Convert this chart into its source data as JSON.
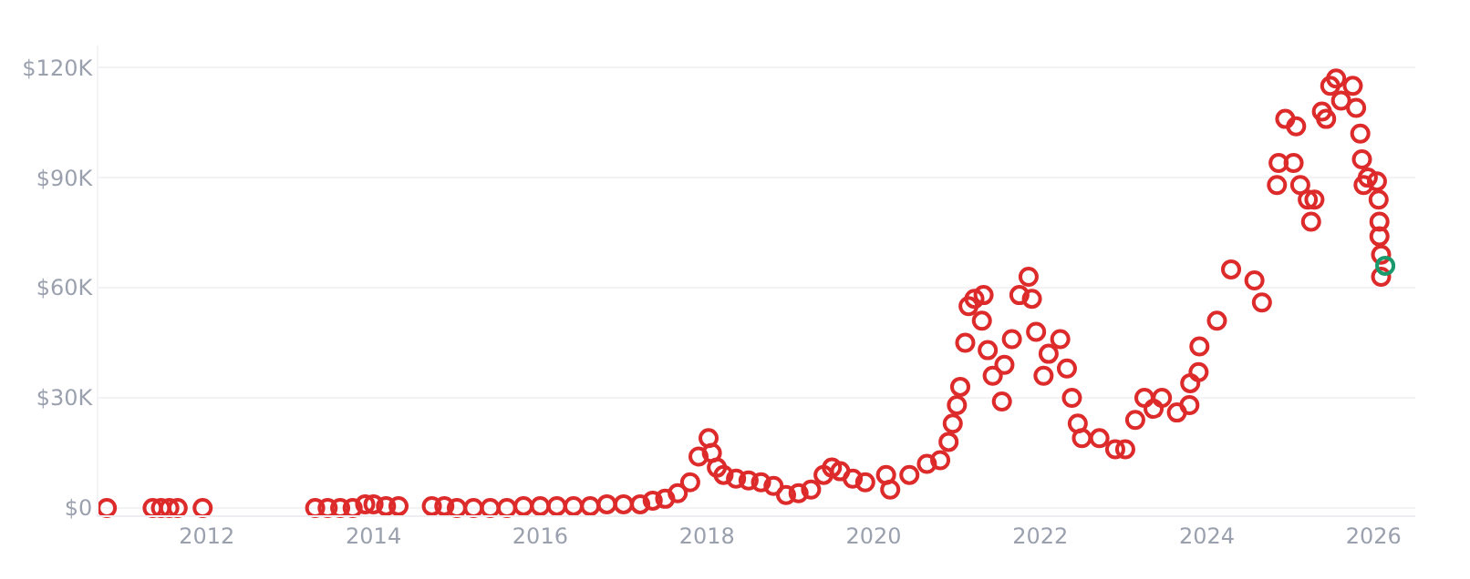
{
  "chart_data": {
    "type": "scatter",
    "marker": "circle",
    "grid": "y",
    "xlim": [
      2010.7,
      2026.5
    ],
    "xticks": [
      2012,
      2014,
      2016,
      2018,
      2020,
      2022,
      2024,
      2026
    ],
    "ylim": [
      -2000,
      126000
    ],
    "yticks": [
      {
        "value": 0,
        "label": "$0"
      },
      {
        "value": 30000,
        "label": "$30K"
      },
      {
        "value": 60000,
        "label": "$60K"
      },
      {
        "value": 90000,
        "label": "$90K"
      },
      {
        "value": 120000,
        "label": "$120K"
      }
    ],
    "series": [
      {
        "color": "#dd2a2a",
        "x": [
          2010.8,
          2011.35,
          2011.45,
          2011.55,
          2011.65,
          2011.95,
          2013.3,
          2013.45,
          2013.6,
          2013.75,
          2013.9,
          2014.0,
          2014.15,
          2014.3,
          2014.7,
          2014.85,
          2015.0,
          2015.2,
          2015.4,
          2015.6,
          2015.8,
          2016.0,
          2016.2,
          2016.4,
          2016.6,
          2016.8,
          2017.0,
          2017.2,
          2017.35,
          2017.5,
          2017.65,
          2017.8,
          2017.9,
          2018.02,
          2018.06,
          2018.12,
          2018.2,
          2018.35,
          2018.5,
          2018.65,
          2018.8,
          2018.95,
          2019.1,
          2019.25,
          2019.4,
          2019.5,
          2019.6,
          2019.75,
          2019.9,
          2020.15,
          2020.2,
          2020.43,
          2020.64,
          2020.8,
          2020.9,
          2020.95,
          2021.0,
          2021.04,
          2021.1,
          2021.14,
          2021.21,
          2021.32,
          2021.3,
          2021.37,
          2021.43,
          2021.54,
          2021.57,
          2021.66,
          2021.75,
          2021.86,
          2021.9,
          2021.95,
          2022.04,
          2022.1,
          2022.24,
          2022.32,
          2022.38,
          2022.45,
          2022.5,
          2022.71,
          2022.9,
          2023.02,
          2023.14,
          2023.25,
          2023.36,
          2023.46,
          2023.64,
          2023.79,
          2023.8,
          2023.9,
          2023.91,
          2024.12,
          2024.29,
          2024.57,
          2024.66,
          2024.84,
          2024.86,
          2024.94,
          2025.04,
          2025.07,
          2025.12,
          2025.21,
          2025.25,
          2025.29,
          2025.38,
          2025.43,
          2025.48,
          2025.55,
          2025.61,
          2025.75,
          2025.79,
          2025.84,
          2025.86,
          2025.88,
          2025.93,
          2026.04,
          2026.06,
          2026.07,
          2026.07,
          2026.09,
          2026.09
        ],
        "values": [
          0,
          0,
          0,
          0,
          0,
          0,
          0,
          0,
          0,
          0,
          1000,
          1000,
          500,
          500,
          500,
          500,
          0,
          0,
          0,
          0,
          500,
          500,
          500,
          500,
          500,
          1000,
          1000,
          1000,
          2000,
          2500,
          4000,
          7000,
          14000,
          19000,
          15000,
          11000,
          9000,
          8000,
          7500,
          7000,
          6000,
          3500,
          4000,
          5000,
          9000,
          11000,
          10000,
          8000,
          7000,
          9000,
          5000,
          9000,
          12000,
          13000,
          18000,
          23000,
          28000,
          33000,
          45000,
          55000,
          57000,
          58000,
          51000,
          43000,
          36000,
          29000,
          39000,
          46000,
          58000,
          63000,
          57000,
          48000,
          36000,
          42000,
          46000,
          38000,
          30000,
          23000,
          19000,
          19000,
          16000,
          16000,
          24000,
          30000,
          27000,
          30000,
          26000,
          28000,
          34000,
          37000,
          44000,
          51000,
          65000,
          62000,
          56000,
          88000,
          94000,
          106000,
          94000,
          104000,
          88000,
          84000,
          78000,
          84000,
          108000,
          106000,
          115000,
          117000,
          111000,
          115000,
          109000,
          102000,
          95000,
          88000,
          90000,
          89000,
          84000,
          78000,
          74000,
          69000,
          63000
        ]
      },
      {
        "color": "#1a9a6c",
        "x": [
          2026.14
        ],
        "values": [
          66000
        ]
      }
    ]
  }
}
